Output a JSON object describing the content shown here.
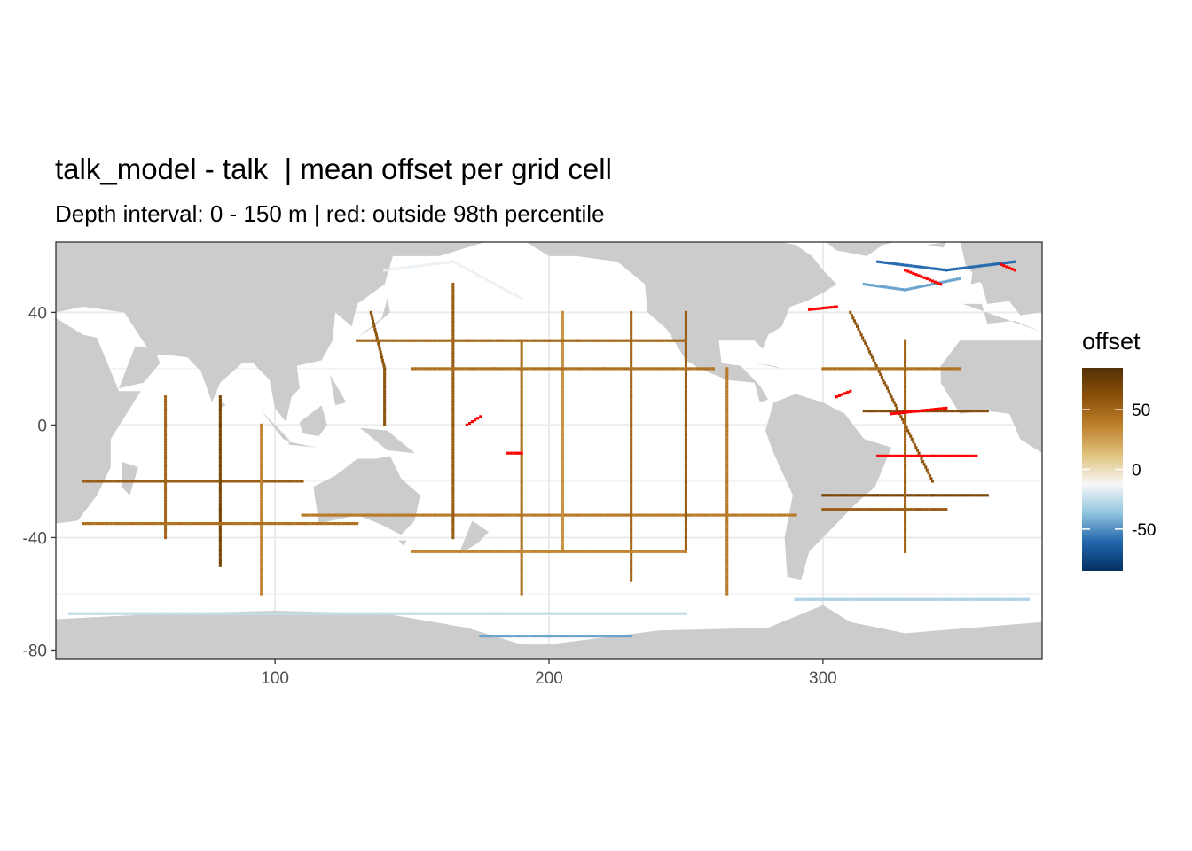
{
  "chart_data": {
    "type": "heatmap",
    "title": "talk_model - talk  | mean offset per grid cell",
    "subtitle": "Depth interval: 0 - 150 m | red: outside 98th percentile",
    "xlabel": "",
    "ylabel": "",
    "xlim": [
      20,
      380
    ],
    "ylim": [
      -83,
      65
    ],
    "x_ticks": [
      100,
      200,
      300
    ],
    "y_ticks": [
      -80,
      -40,
      0,
      40
    ],
    "grid": true,
    "legend": {
      "title": "offset",
      "placement": "right",
      "ticks": [
        50,
        0,
        -50
      ],
      "range": [
        -85,
        85
      ],
      "colors": [
        "#053061",
        "#2166ac",
        "#92c5de",
        "#f7f7f7",
        "#dfc27d",
        "#bf812d",
        "#8c510a",
        "#543005"
      ],
      "outlier_color": "#ff0000"
    },
    "colors": {
      "land": "#cccccc",
      "ocean_empty": "#ffffff",
      "panel_border": "#333333",
      "grid": "#ebebeb"
    },
    "tracks": [
      {
        "name": "",
        "lon": [
          30,
          60,
          90,
          110
        ],
        "lat": [
          -20,
          -20,
          -20,
          -20
        ],
        "value": 55
      },
      {
        "name": "",
        "lon": [
          110,
          150,
          180,
          210,
          250,
          290
        ],
        "lat": [
          -32,
          -32,
          -32,
          -32,
          -32,
          -32
        ],
        "value": 40
      },
      {
        "name": "",
        "lon": [
          60,
          60,
          60,
          60
        ],
        "lat": [
          10,
          0,
          -20,
          -40
        ],
        "value": 50
      },
      {
        "name": "",
        "lon": [
          80,
          80,
          80,
          80
        ],
        "lat": [
          10,
          0,
          -30,
          -50
        ],
        "value": 70
      },
      {
        "name": "",
        "lon": [
          95,
          95,
          95
        ],
        "lat": [
          0,
          -20,
          -60
        ],
        "value": 35
      },
      {
        "name": "",
        "lon": [
          135,
          140,
          140
        ],
        "lat": [
          40,
          20,
          0
        ],
        "value": 60
      },
      {
        "name": "",
        "lon": [
          165,
          165,
          165,
          165
        ],
        "lat": [
          50,
          20,
          0,
          -40
        ],
        "value": 55
      },
      {
        "name": "",
        "lon": [
          190,
          190,
          190
        ],
        "lat": [
          30,
          0,
          -60
        ],
        "value": 45
      },
      {
        "name": "",
        "lon": [
          205,
          205,
          205
        ],
        "lat": [
          40,
          0,
          -45
        ],
        "value": 30
      },
      {
        "name": "",
        "lon": [
          230,
          230,
          230
        ],
        "lat": [
          40,
          10,
          -55
        ],
        "value": 50
      },
      {
        "name": "",
        "lon": [
          250,
          250,
          250
        ],
        "lat": [
          40,
          0,
          -45
        ],
        "value": 55
      },
      {
        "name": "",
        "lon": [
          265,
          265,
          265
        ],
        "lat": [
          20,
          0,
          -60
        ],
        "value": 40
      },
      {
        "name": "",
        "lon": [
          150,
          180,
          220,
          260
        ],
        "lat": [
          20,
          20,
          20,
          20
        ],
        "value": 45
      },
      {
        "name": "",
        "lon": [
          130,
          170,
          210,
          250
        ],
        "lat": [
          30,
          30,
          30,
          30
        ],
        "value": 50
      },
      {
        "name": "",
        "lon": [
          150,
          200,
          250
        ],
        "lat": [
          -45,
          -45,
          -45
        ],
        "value": 35
      },
      {
        "name": "",
        "lon": [
          30,
          80,
          130
        ],
        "lat": [
          -35,
          -35,
          -35
        ],
        "value": 45
      },
      {
        "name": "",
        "lon": [
          310,
          320,
          330,
          340
        ],
        "lat": [
          40,
          20,
          0,
          -20
        ],
        "value": 60
      },
      {
        "name": "",
        "lon": [
          300,
          320,
          340,
          360
        ],
        "lat": [
          -25,
          -25,
          -25,
          -25
        ],
        "value": 70
      },
      {
        "name": "",
        "lon": [
          300,
          320,
          345
        ],
        "lat": [
          -30,
          -30,
          -30
        ],
        "value": 55
      },
      {
        "name": "",
        "lon": [
          300,
          310,
          330,
          350
        ],
        "lat": [
          20,
          20,
          20,
          20
        ],
        "value": 45
      },
      {
        "name": "",
        "lon": [
          330,
          330,
          330
        ],
        "lat": [
          30,
          0,
          -45
        ],
        "value": 50
      },
      {
        "name": "",
        "lon": [
          315,
          330,
          360
        ],
        "lat": [
          5,
          5,
          5
        ],
        "value": 65
      },
      {
        "name": "",
        "lon": [
          25,
          100,
          180,
          250
        ],
        "lat": [
          -67,
          -67,
          -67,
          -67
        ],
        "value": -25
      },
      {
        "name": "",
        "lon": [
          175,
          200,
          230
        ],
        "lat": [
          -75,
          -75,
          -75
        ],
        "value": -45
      },
      {
        "name": "",
        "lon": [
          290,
          320,
          360,
          375
        ],
        "lat": [
          -62,
          -62,
          -62,
          -62
        ],
        "value": -30
      },
      {
        "name": "",
        "lon": [
          140,
          165,
          190
        ],
        "lat": [
          55,
          58,
          45
        ],
        "value": -15
      },
      {
        "name": "",
        "lon": [
          320,
          345,
          370
        ],
        "lat": [
          58,
          55,
          58
        ],
        "value": -60
      },
      {
        "name": "",
        "lon": [
          315,
          330,
          350
        ],
        "lat": [
          50,
          48,
          52
        ],
        "value": -45
      }
    ],
    "outliers": [
      {
        "lon": [
          320,
          340,
          356
        ],
        "lat": [
          -11,
          -11,
          -11
        ]
      },
      {
        "lon": [
          330,
          343
        ],
        "lat": [
          55,
          50
        ]
      },
      {
        "lon": [
          365,
          370
        ],
        "lat": [
          57,
          55
        ]
      },
      {
        "lon": [
          185,
          190
        ],
        "lat": [
          -10,
          -10
        ]
      },
      {
        "lon": [
          170,
          175
        ],
        "lat": [
          0,
          3
        ]
      },
      {
        "lon": [
          295,
          305
        ],
        "lat": [
          41,
          42
        ]
      },
      {
        "lon": [
          325,
          345
        ],
        "lat": [
          4,
          6
        ]
      },
      {
        "lon": [
          305,
          310
        ],
        "lat": [
          10,
          12
        ]
      }
    ]
  }
}
